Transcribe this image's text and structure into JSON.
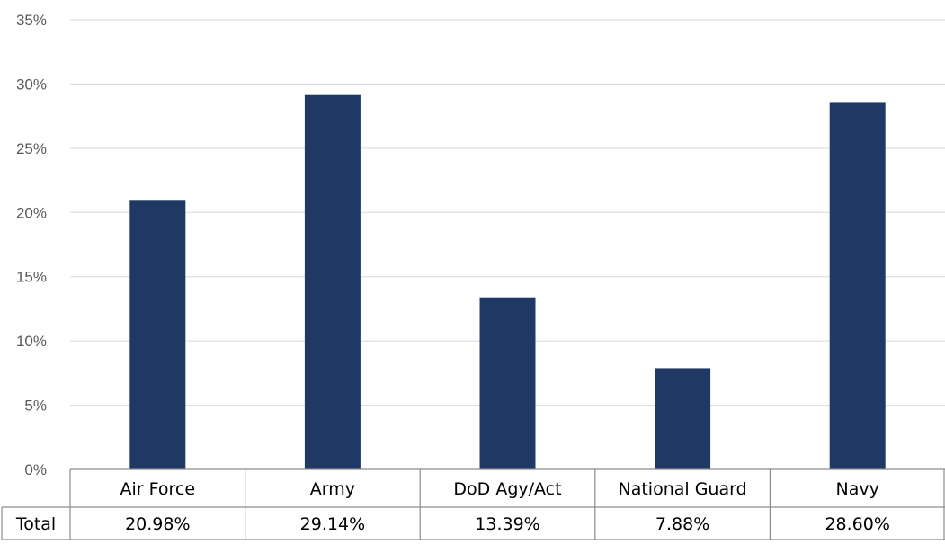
{
  "chart_data": {
    "type": "bar",
    "categories": [
      "Air Force",
      "Army",
      "DoD Agy/Act",
      "National Guard",
      "Navy"
    ],
    "series": [
      {
        "name": "Total",
        "values": [
          20.98,
          29.14,
          13.39,
          7.88,
          28.6
        ]
      }
    ],
    "data_table": {
      "row_label": "Total",
      "cells": [
        "20.98%",
        "29.14%",
        "13.39%",
        "7.88%",
        "28.60%"
      ]
    },
    "yticks": [
      "0%",
      "5%",
      "10%",
      "15%",
      "20%",
      "25%",
      "30%",
      "35%"
    ],
    "ylim": [
      0,
      35
    ],
    "grid": true,
    "bar_color": "#1f3864",
    "gridline_color": "#d9d9d9",
    "table_border_color": "#8c8c8c"
  }
}
